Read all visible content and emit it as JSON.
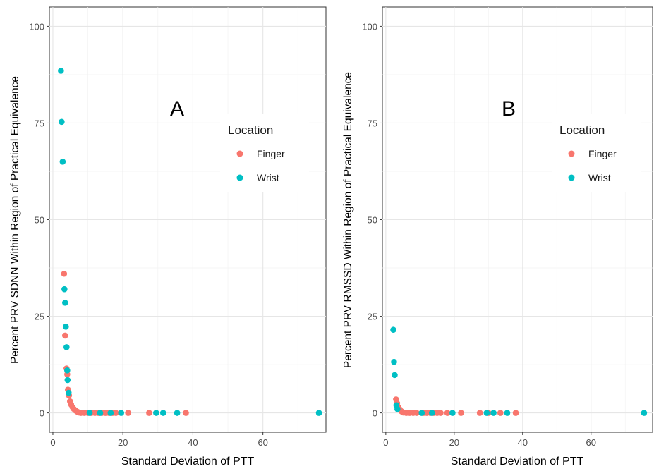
{
  "chart_data": [
    {
      "type": "scatter",
      "panel_label": "A",
      "xlabel": "Standard Deviation of PTT",
      "ylabel": "Percent PRV SDNN Within Region of Practical Equivalence",
      "xlim": [
        -1,
        78
      ],
      "ylim": [
        -5,
        105
      ],
      "x_ticks": [
        0,
        20,
        40,
        60
      ],
      "y_ticks": [
        0,
        25,
        50,
        75,
        100
      ],
      "grid": true,
      "legend": {
        "title": "Location",
        "placement": "right"
      },
      "series": [
        {
          "name": "Finger",
          "color": "#F8766D",
          "points": [
            [
              3.2,
              36
            ],
            [
              3.5,
              20
            ],
            [
              3.9,
              11.5
            ],
            [
              4.1,
              10
            ],
            [
              4.3,
              6
            ],
            [
              4.6,
              4.5
            ],
            [
              4.9,
              3
            ],
            [
              5.2,
              2.2
            ],
            [
              5.6,
              1.5
            ],
            [
              6.0,
              1
            ],
            [
              6.5,
              0.6
            ],
            [
              7.0,
              0.3
            ],
            [
              7.5,
              0.1
            ],
            [
              8,
              0
            ],
            [
              9,
              0
            ],
            [
              10,
              0
            ],
            [
              11,
              0
            ],
            [
              12,
              0
            ],
            [
              13,
              0
            ],
            [
              14,
              0
            ],
            [
              15,
              0
            ],
            [
              16,
              0
            ],
            [
              17,
              0
            ],
            [
              18,
              0
            ],
            [
              21.5,
              0
            ],
            [
              27.5,
              0
            ],
            [
              38,
              0
            ]
          ]
        },
        {
          "name": "Wrist",
          "color": "#00BFC4",
          "points": [
            [
              2.3,
              88.5
            ],
            [
              2.5,
              75.3
            ],
            [
              2.8,
              65
            ],
            [
              3.3,
              32
            ],
            [
              3.5,
              28.5
            ],
            [
              3.7,
              22.3
            ],
            [
              3.9,
              17
            ],
            [
              4.1,
              11
            ],
            [
              4.2,
              8.5
            ],
            [
              4.5,
              5.2
            ],
            [
              10.5,
              0
            ],
            [
              13.5,
              0
            ],
            [
              16.5,
              0
            ],
            [
              19.5,
              0
            ],
            [
              29.5,
              0
            ],
            [
              31.5,
              0
            ],
            [
              35.5,
              0
            ],
            [
              76,
              0
            ]
          ]
        }
      ]
    },
    {
      "type": "scatter",
      "panel_label": "B",
      "xlabel": "Standard Deviation of PTT",
      "ylabel": "Percent PRV RMSSD Within Region of Practical Equivalence",
      "xlim": [
        -1,
        78
      ],
      "ylim": [
        -5,
        105
      ],
      "x_ticks": [
        0,
        20,
        40,
        60
      ],
      "y_ticks": [
        0,
        25,
        50,
        75,
        100
      ],
      "grid": true,
      "legend": {
        "title": "Location",
        "placement": "right"
      },
      "series": [
        {
          "name": "Finger",
          "color": "#F8766D",
          "points": [
            [
              3.0,
              3.5
            ],
            [
              3.3,
              2.5
            ],
            [
              3.7,
              1.5
            ],
            [
              4.1,
              0.9
            ],
            [
              4.6,
              0.4
            ],
            [
              5.2,
              0.1
            ],
            [
              6,
              0
            ],
            [
              7,
              0
            ],
            [
              8,
              0
            ],
            [
              9,
              0
            ],
            [
              11,
              0
            ],
            [
              12,
              0
            ],
            [
              13,
              0
            ],
            [
              14,
              0
            ],
            [
              15,
              0
            ],
            [
              16,
              0
            ],
            [
              18,
              0
            ],
            [
              22,
              0
            ],
            [
              27.5,
              0
            ],
            [
              30,
              0
            ],
            [
              33.5,
              0
            ],
            [
              38,
              0
            ]
          ]
        },
        {
          "name": "Wrist",
          "color": "#00BFC4",
          "points": [
            [
              2.2,
              21.5
            ],
            [
              2.4,
              13.2
            ],
            [
              2.6,
              9.8
            ],
            [
              3.1,
              2
            ],
            [
              3.4,
              1
            ],
            [
              10.5,
              0
            ],
            [
              13.5,
              0
            ],
            [
              19.5,
              0
            ],
            [
              29.5,
              0
            ],
            [
              31.5,
              0
            ],
            [
              35.5,
              0
            ],
            [
              75.5,
              0
            ]
          ]
        }
      ]
    }
  ]
}
